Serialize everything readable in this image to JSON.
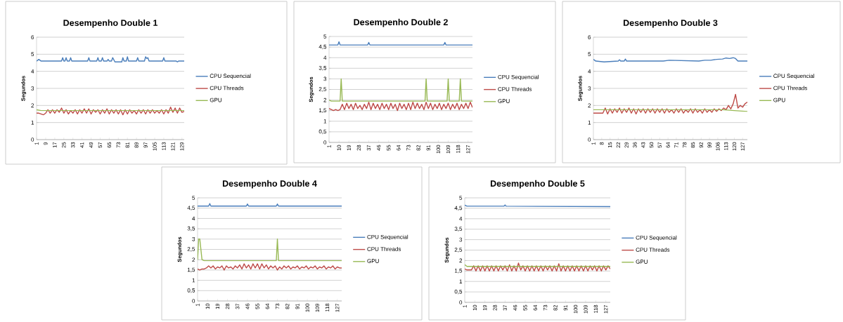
{
  "chart_data": [
    {
      "type": "line",
      "title": "Desempenho Double 1",
      "ylabel": "Segundos",
      "grid": "y",
      "legend": "right",
      "marker": "none",
      "xlim": [
        1,
        131
      ],
      "xticks": [
        1,
        9,
        17,
        25,
        33,
        41,
        49,
        57,
        65,
        73,
        81,
        89,
        97,
        105,
        113,
        121,
        129
      ],
      "ylim": [
        0,
        6
      ],
      "yticks": [
        0,
        1,
        2,
        3,
        4,
        5,
        6
      ],
      "series": [
        {
          "name": "CPU Sequencial",
          "color": "#4a7ebb",
          "x": [
            1,
            3,
            5,
            23,
            24,
            25,
            26,
            27,
            28,
            30,
            31,
            32,
            46,
            47,
            48,
            54,
            55,
            56,
            58,
            59,
            60,
            63,
            64,
            65,
            67,
            68,
            70,
            76,
            77,
            78,
            80,
            81,
            82,
            89,
            90,
            91,
            96,
            97,
            98,
            99,
            100,
            112,
            113,
            114,
            124,
            125,
            126,
            131
          ],
          "values": [
            4.6,
            4.7,
            4.6,
            4.6,
            4.8,
            4.6,
            4.6,
            4.8,
            4.6,
            4.6,
            4.8,
            4.6,
            4.6,
            4.8,
            4.6,
            4.6,
            4.8,
            4.6,
            4.6,
            4.8,
            4.6,
            4.6,
            4.7,
            4.6,
            4.6,
            4.8,
            4.55,
            4.55,
            4.8,
            4.6,
            4.6,
            4.85,
            4.6,
            4.6,
            4.8,
            4.6,
            4.6,
            4.85,
            4.75,
            4.8,
            4.6,
            4.6,
            4.8,
            4.6,
            4.6,
            4.55,
            4.6,
            4.6
          ]
        },
        {
          "name": "CPU Threads",
          "color": "#be4b48",
          "x": [
            1,
            3,
            5,
            7,
            9,
            11,
            13,
            15,
            17,
            19,
            21,
            23,
            25,
            27,
            29,
            31,
            33,
            35,
            37,
            39,
            41,
            43,
            45,
            47,
            49,
            51,
            53,
            55,
            57,
            59,
            61,
            63,
            65,
            67,
            69,
            71,
            73,
            75,
            77,
            79,
            81,
            83,
            85,
            87,
            89,
            91,
            93,
            95,
            97,
            99,
            101,
            103,
            105,
            107,
            109,
            111,
            113,
            115,
            117,
            119,
            121,
            123,
            125,
            127,
            129,
            131
          ],
          "values": [
            1.55,
            1.55,
            1.5,
            1.45,
            1.55,
            1.75,
            1.55,
            1.75,
            1.55,
            1.75,
            1.6,
            1.85,
            1.55,
            1.75,
            1.5,
            1.7,
            1.55,
            1.75,
            1.5,
            1.75,
            1.55,
            1.8,
            1.55,
            1.8,
            1.5,
            1.75,
            1.6,
            1.75,
            1.5,
            1.75,
            1.55,
            1.8,
            1.5,
            1.75,
            1.55,
            1.75,
            1.5,
            1.75,
            1.45,
            1.75,
            1.5,
            1.75,
            1.55,
            1.7,
            1.5,
            1.75,
            1.55,
            1.75,
            1.5,
            1.75,
            1.55,
            1.75,
            1.55,
            1.7,
            1.55,
            1.75,
            1.5,
            1.75,
            1.55,
            1.9,
            1.6,
            1.85,
            1.55,
            1.85,
            1.6,
            1.65
          ]
        },
        {
          "name": "GPU",
          "color": "#98b954",
          "x": [
            1,
            5,
            131
          ],
          "values": [
            1.75,
            1.7,
            1.7
          ]
        }
      ]
    },
    {
      "type": "line",
      "title": "Desempenho Double 2",
      "ylabel": "Segundos",
      "grid": "y",
      "legend": "right",
      "marker": "none",
      "xlim": [
        1,
        131
      ],
      "xticks": [
        1,
        10,
        19,
        28,
        37,
        46,
        55,
        64,
        73,
        82,
        91,
        100,
        109,
        118,
        127
      ],
      "ylim": [
        0,
        5
      ],
      "yticks": [
        0,
        {
          "value": 0.5,
          "label": "0,5"
        },
        1,
        {
          "value": 1.5,
          "label": "1,5"
        },
        2,
        {
          "value": 2.5,
          "label": "2,5"
        },
        3,
        {
          "value": 3.5,
          "label": "3,5"
        },
        4,
        {
          "value": 4.5,
          "label": "4,5"
        },
        5
      ],
      "series": [
        {
          "name": "CPU Sequencial",
          "color": "#4a7ebb",
          "x": [
            1,
            9,
            10,
            11,
            36,
            37,
            38,
            105,
            106,
            107,
            131
          ],
          "values": [
            4.6,
            4.6,
            4.75,
            4.6,
            4.6,
            4.72,
            4.6,
            4.6,
            4.72,
            4.6,
            4.6
          ]
        },
        {
          "name": "CPU Threads",
          "color": "#be4b48",
          "x": [
            1,
            3,
            5,
            7,
            9,
            11,
            13,
            15,
            17,
            19,
            21,
            23,
            25,
            27,
            29,
            31,
            33,
            35,
            37,
            39,
            41,
            43,
            45,
            47,
            49,
            51,
            53,
            55,
            57,
            59,
            61,
            63,
            65,
            67,
            69,
            71,
            73,
            75,
            77,
            79,
            81,
            83,
            85,
            87,
            89,
            91,
            93,
            95,
            97,
            99,
            101,
            103,
            105,
            107,
            109,
            111,
            113,
            115,
            117,
            119,
            121,
            123,
            125,
            127,
            129,
            131
          ],
          "values": [
            1.6,
            1.55,
            1.5,
            1.55,
            1.5,
            1.55,
            1.8,
            1.55,
            1.85,
            1.6,
            1.8,
            1.55,
            1.85,
            1.6,
            1.75,
            1.55,
            1.8,
            1.6,
            1.9,
            1.55,
            1.85,
            1.6,
            1.8,
            1.55,
            1.85,
            1.6,
            1.8,
            1.55,
            1.85,
            1.6,
            1.8,
            1.5,
            1.85,
            1.6,
            1.8,
            1.55,
            1.85,
            1.55,
            1.9,
            1.6,
            1.85,
            1.6,
            1.8,
            1.55,
            1.9,
            1.6,
            1.85,
            1.55,
            1.8,
            1.6,
            1.85,
            1.55,
            1.8,
            1.6,
            1.85,
            1.55,
            1.8,
            1.6,
            1.85,
            1.55,
            1.8,
            1.6,
            1.85,
            1.6,
            1.9,
            1.65
          ]
        },
        {
          "name": "GPU",
          "color": "#98b954",
          "x": [
            1,
            3,
            11,
            12,
            13,
            88,
            89,
            90,
            108,
            109,
            110,
            119,
            120,
            121,
            131
          ],
          "values": [
            2.0,
            1.95,
            1.95,
            3.0,
            1.95,
            1.95,
            3.0,
            1.95,
            1.95,
            3.0,
            1.95,
            1.95,
            3.0,
            1.95,
            1.95
          ]
        }
      ]
    },
    {
      "type": "line",
      "title": "Desempenho Double 3",
      "ylabel": "Segundos",
      "grid": "y",
      "legend": "right",
      "marker": "none",
      "xlim": [
        1,
        131
      ],
      "xticks": [
        1,
        8,
        15,
        22,
        29,
        36,
        43,
        50,
        57,
        64,
        71,
        78,
        85,
        92,
        99,
        106,
        113,
        120,
        127
      ],
      "ylim": [
        0,
        6
      ],
      "yticks": [
        0,
        1,
        2,
        3,
        4,
        5,
        6
      ],
      "series": [
        {
          "name": "CPU Sequencial",
          "color": "#4a7ebb",
          "x": [
            1,
            3,
            10,
            22,
            23,
            24,
            27,
            28,
            29,
            60,
            65,
            90,
            95,
            100,
            105,
            110,
            113,
            116,
            119,
            121,
            123,
            131
          ],
          "values": [
            4.7,
            4.6,
            4.55,
            4.6,
            4.68,
            4.6,
            4.6,
            4.72,
            4.6,
            4.6,
            4.65,
            4.6,
            4.65,
            4.65,
            4.7,
            4.72,
            4.78,
            4.75,
            4.8,
            4.75,
            4.6,
            4.6
          ]
        },
        {
          "name": "CPU Threads",
          "color": "#be4b48",
          "x": [
            1,
            3,
            5,
            7,
            9,
            11,
            13,
            15,
            17,
            19,
            21,
            23,
            25,
            27,
            29,
            31,
            33,
            35,
            37,
            39,
            41,
            43,
            45,
            47,
            49,
            51,
            53,
            55,
            57,
            59,
            61,
            63,
            65,
            67,
            69,
            71,
            73,
            75,
            77,
            79,
            81,
            83,
            85,
            87,
            89,
            91,
            93,
            95,
            97,
            99,
            101,
            103,
            105,
            107,
            109,
            111,
            113,
            115,
            117,
            119,
            121,
            123,
            125,
            127,
            129,
            131
          ],
          "values": [
            1.55,
            1.55,
            1.55,
            1.55,
            1.55,
            1.85,
            1.5,
            1.8,
            1.55,
            1.8,
            1.6,
            1.85,
            1.55,
            1.8,
            1.6,
            1.85,
            1.55,
            1.8,
            1.5,
            1.8,
            1.6,
            1.8,
            1.55,
            1.8,
            1.6,
            1.8,
            1.55,
            1.8,
            1.6,
            1.8,
            1.55,
            1.8,
            1.6,
            1.75,
            1.55,
            1.8,
            1.6,
            1.8,
            1.55,
            1.75,
            1.6,
            1.8,
            1.55,
            1.8,
            1.6,
            1.75,
            1.55,
            1.8,
            1.6,
            1.75,
            1.6,
            1.8,
            1.65,
            1.8,
            1.7,
            1.85,
            1.75,
            2.0,
            1.8,
            2.1,
            2.65,
            1.85,
            2.0,
            1.9,
            2.1,
            2.2
          ]
        },
        {
          "name": "GPU",
          "color": "#98b954",
          "x": [
            1,
            110,
            120,
            131
          ],
          "values": [
            1.75,
            1.75,
            1.7,
            1.65
          ]
        }
      ]
    },
    {
      "type": "line",
      "title": "Desempenho Double 4",
      "ylabel": "Segundos",
      "grid": "y",
      "legend": "right",
      "marker": "none",
      "xlim": [
        1,
        131
      ],
      "xticks": [
        1,
        10,
        19,
        28,
        37,
        46,
        55,
        64,
        73,
        82,
        91,
        100,
        109,
        118,
        127
      ],
      "ylim": [
        0,
        5
      ],
      "yticks": [
        0,
        {
          "value": 0.5,
          "label": "0,5"
        },
        1,
        {
          "value": 1.5,
          "label": "1,5"
        },
        2,
        {
          "value": 2.5,
          "label": "2,5"
        },
        3,
        {
          "value": 3.5,
          "label": "3,5"
        },
        4,
        {
          "value": 4.5,
          "label": "4,5"
        },
        5
      ],
      "series": [
        {
          "name": "CPU Sequencial",
          "color": "#4a7ebb",
          "x": [
            1,
            11,
            12,
            13,
            45,
            46,
            47,
            72,
            73,
            74,
            131
          ],
          "values": [
            4.6,
            4.6,
            4.72,
            4.6,
            4.6,
            4.7,
            4.6,
            4.6,
            4.7,
            4.6,
            4.6
          ]
        },
        {
          "name": "CPU Threads",
          "color": "#be4b48",
          "x": [
            1,
            3,
            5,
            7,
            9,
            11,
            13,
            15,
            17,
            19,
            21,
            23,
            25,
            27,
            29,
            31,
            33,
            35,
            37,
            39,
            41,
            43,
            45,
            47,
            49,
            51,
            53,
            55,
            57,
            59,
            61,
            63,
            65,
            67,
            69,
            71,
            73,
            75,
            77,
            79,
            81,
            83,
            85,
            87,
            89,
            91,
            93,
            95,
            97,
            99,
            101,
            103,
            105,
            107,
            109,
            111,
            113,
            115,
            117,
            119,
            121,
            123,
            125,
            127,
            129,
            131
          ],
          "values": [
            1.55,
            1.5,
            1.55,
            1.55,
            1.6,
            1.7,
            1.6,
            1.7,
            1.55,
            1.65,
            1.6,
            1.7,
            1.5,
            1.7,
            1.6,
            1.65,
            1.55,
            1.7,
            1.6,
            1.75,
            1.55,
            1.8,
            1.6,
            1.75,
            1.55,
            1.8,
            1.6,
            1.8,
            1.55,
            1.8,
            1.6,
            1.75,
            1.55,
            1.7,
            1.6,
            1.7,
            1.5,
            1.65,
            1.55,
            1.7,
            1.6,
            1.7,
            1.55,
            1.65,
            1.6,
            1.7,
            1.55,
            1.65,
            1.6,
            1.7,
            1.55,
            1.65,
            1.6,
            1.7,
            1.55,
            1.65,
            1.6,
            1.7,
            1.55,
            1.65,
            1.6,
            1.7,
            1.55,
            1.65,
            1.6,
            1.6
          ]
        },
        {
          "name": "GPU",
          "color": "#98b954",
          "x": [
            1,
            2,
            3,
            5,
            7,
            72,
            73,
            74,
            131
          ],
          "values": [
            2.0,
            3.0,
            3.0,
            2.0,
            1.95,
            1.95,
            3.0,
            1.95,
            1.95
          ]
        }
      ]
    },
    {
      "type": "line",
      "title": "Desempenho Double 5",
      "ylabel": "Segundos",
      "grid": "y",
      "legend": "right",
      "marker": "none",
      "xlim": [
        1,
        131
      ],
      "xticks": [
        1,
        10,
        19,
        28,
        37,
        46,
        55,
        64,
        73,
        82,
        91,
        100,
        109,
        118,
        127
      ],
      "ylim": [
        0,
        5
      ],
      "yticks": [
        0,
        {
          "value": 0.5,
          "label": "0,5"
        },
        1,
        {
          "value": 1.5,
          "label": "1,5"
        },
        2,
        {
          "value": 2.5,
          "label": "2,5"
        },
        3,
        {
          "value": 3.5,
          "label": "3,5"
        },
        4,
        {
          "value": 4.5,
          "label": "4,5"
        },
        5
      ],
      "series": [
        {
          "name": "CPU Sequencial",
          "color": "#4a7ebb",
          "x": [
            1,
            3,
            36,
            37,
            38,
            131
          ],
          "values": [
            4.65,
            4.6,
            4.6,
            4.66,
            4.6,
            4.58
          ]
        },
        {
          "name": "CPU Threads",
          "color": "#be4b48",
          "x": [
            1,
            3,
            5,
            7,
            9,
            11,
            13,
            15,
            17,
            19,
            21,
            23,
            25,
            27,
            29,
            31,
            33,
            35,
            37,
            39,
            41,
            43,
            45,
            47,
            49,
            51,
            53,
            55,
            57,
            59,
            61,
            63,
            65,
            67,
            69,
            71,
            73,
            75,
            77,
            79,
            81,
            83,
            85,
            87,
            89,
            91,
            93,
            95,
            97,
            99,
            101,
            103,
            105,
            107,
            109,
            111,
            113,
            115,
            117,
            119,
            121,
            123,
            125,
            127,
            129,
            131
          ],
          "values": [
            1.6,
            1.55,
            1.55,
            1.55,
            1.75,
            1.5,
            1.75,
            1.5,
            1.75,
            1.5,
            1.75,
            1.5,
            1.75,
            1.5,
            1.75,
            1.5,
            1.75,
            1.55,
            1.75,
            1.5,
            1.8,
            1.5,
            1.75,
            1.5,
            1.88,
            1.55,
            1.75,
            1.5,
            1.75,
            1.5,
            1.75,
            1.5,
            1.75,
            1.5,
            1.75,
            1.5,
            1.75,
            1.55,
            1.75,
            1.5,
            1.75,
            1.5,
            1.85,
            1.5,
            1.75,
            1.5,
            1.75,
            1.5,
            1.75,
            1.5,
            1.75,
            1.5,
            1.75,
            1.5,
            1.75,
            1.5,
            1.75,
            1.55,
            1.75,
            1.5,
            1.75,
            1.5,
            1.75,
            1.55,
            1.75,
            1.6
          ]
        },
        {
          "name": "GPU",
          "color": "#98b954",
          "x": [
            1,
            3,
            131
          ],
          "values": [
            1.8,
            1.72,
            1.72
          ]
        }
      ]
    }
  ]
}
